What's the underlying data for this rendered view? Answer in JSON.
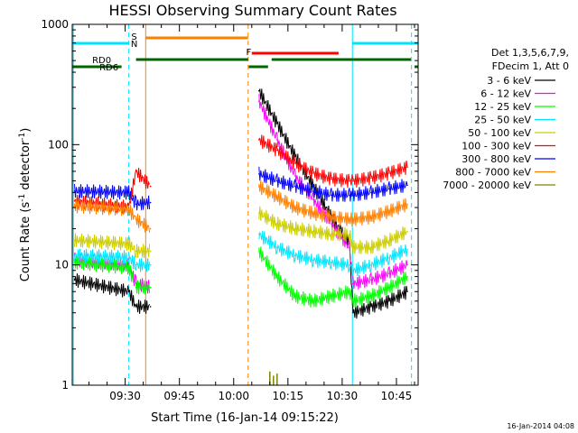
{
  "chart_data": {
    "type": "line",
    "title": "HESSI Observing Summary Count Rates",
    "xlabel": "Start Time (16-Jan-14 09:15:22)",
    "ylabel": "Count Rate (s⁻¹ detector⁻¹)",
    "ylabel_main": "Count Rate (s",
    "ylabel_sup1": "-1",
    "ylabel_mid": " detector",
    "ylabel_sup2": "-1",
    "ylabel_end": ")",
    "y_scale": "log",
    "ylim": [
      1,
      1000
    ],
    "xlim": [
      "09:15:22",
      "10:51:00"
    ],
    "x_ticks": [
      "09:30",
      "09:45",
      "10:00",
      "10:15",
      "10:30",
      "10:45"
    ],
    "y_ticks": [
      "1",
      "10",
      "100",
      "1000"
    ],
    "legend_header": [
      "Det 1,3,5,6,7,9,",
      "FDecim 1, Att 0"
    ],
    "legend_placement": "right",
    "footer_date": "16-Jan-2014 04:08",
    "annotations": [
      {
        "text": "S",
        "color": "#ff8000"
      },
      {
        "text": "N",
        "color": "#00e5ff"
      },
      {
        "text": "F",
        "color": "#ff0000"
      },
      {
        "text": "RD0",
        "color": "#006400"
      },
      {
        "text": "RD6",
        "color": "#006400"
      }
    ],
    "series": [
      {
        "name": "3 - 6 keV",
        "color": "#000000",
        "x": [
          "09:16",
          "09:31",
          "09:33",
          "09:37",
          "10:07",
          "10:12",
          "10:17",
          "10:22",
          "10:27",
          "10:32",
          "10:33",
          "10:38",
          "10:43",
          "10:48"
        ],
        "y": [
          7.5,
          6,
          4.5,
          4.5,
          280,
          150,
          80,
          45,
          25,
          15,
          4,
          4.5,
          5,
          6
        ]
      },
      {
        "name": "6 - 12 keV",
        "color": "#ff00ff",
        "x": [
          "09:16",
          "09:31",
          "09:33",
          "09:37",
          "10:07",
          "10:12",
          "10:17",
          "10:22",
          "10:27",
          "10:32",
          "10:33",
          "10:38",
          "10:43",
          "10:48"
        ],
        "y": [
          11,
          10,
          7,
          6.5,
          230,
          110,
          55,
          35,
          22,
          14,
          7,
          7.5,
          8.5,
          10
        ]
      },
      {
        "name": "12 - 25 keV",
        "color": "#00ff00",
        "x": [
          "09:16",
          "09:31",
          "09:33",
          "09:37",
          "10:07",
          "10:12",
          "10:17",
          "10:22",
          "10:27",
          "10:32",
          "10:33",
          "10:38",
          "10:43",
          "10:48"
        ],
        "y": [
          10.5,
          9.5,
          6.5,
          6.5,
          13,
          8,
          5.5,
          5,
          5.5,
          6,
          5,
          5.5,
          6.5,
          8
        ]
      },
      {
        "name": "25 - 50 keV",
        "color": "#00e5ff",
        "x": [
          "09:16",
          "09:31",
          "09:33",
          "09:37",
          "10:07",
          "10:12",
          "10:17",
          "10:22",
          "10:27",
          "10:32",
          "10:33",
          "10:38",
          "10:43",
          "10:48"
        ],
        "y": [
          12,
          11.5,
          10,
          10,
          18,
          14,
          12,
          11,
          10.5,
          10,
          9,
          10,
          11.5,
          13.5
        ]
      },
      {
        "name": "50 - 100 keV",
        "color": "#cccc00",
        "x": [
          "09:16",
          "09:31",
          "09:33",
          "09:37",
          "10:07",
          "10:12",
          "10:17",
          "10:22",
          "10:27",
          "10:32",
          "10:33",
          "10:38",
          "10:43",
          "10:48"
        ],
        "y": [
          16,
          15,
          13,
          13,
          27,
          22,
          20,
          19,
          18,
          18,
          14,
          14,
          16,
          19
        ]
      },
      {
        "name": "100 - 300 keV",
        "color": "#ff0000",
        "x": [
          "09:16",
          "09:31",
          "09:33",
          "09:37",
          "10:07",
          "10:12",
          "10:17",
          "10:22",
          "10:27",
          "10:32",
          "10:33",
          "10:38",
          "10:43",
          "10:48"
        ],
        "y": [
          34,
          30,
          60,
          45,
          110,
          90,
          70,
          58,
          52,
          50,
          50,
          53,
          58,
          65
        ]
      },
      {
        "name": "300 - 800 keV",
        "color": "#0000ff",
        "x": [
          "09:16",
          "09:31",
          "09:33",
          "09:37",
          "10:07",
          "10:12",
          "10:17",
          "10:22",
          "10:27",
          "10:32",
          "10:33",
          "10:38",
          "10:43",
          "10:48"
        ],
        "y": [
          41,
          40,
          32,
          33,
          57,
          50,
          45,
          41,
          38,
          38,
          38,
          40,
          43,
          46
        ]
      },
      {
        "name": "800 - 7000 keV",
        "color": "#ff8000",
        "x": [
          "09:16",
          "09:31",
          "09:33",
          "09:37",
          "10:07",
          "10:12",
          "10:17",
          "10:22",
          "10:27",
          "10:32",
          "10:33",
          "10:38",
          "10:43",
          "10:48"
        ],
        "y": [
          31,
          29,
          24,
          20,
          45,
          37,
          30,
          27,
          25,
          24,
          24,
          25,
          28,
          32
        ]
      },
      {
        "name": "7000 - 20000 keV",
        "color": "#808000",
        "x": [
          "10:10",
          "10:11",
          "10:12"
        ],
        "y": [
          1.3,
          1.2,
          1.25
        ]
      }
    ]
  }
}
